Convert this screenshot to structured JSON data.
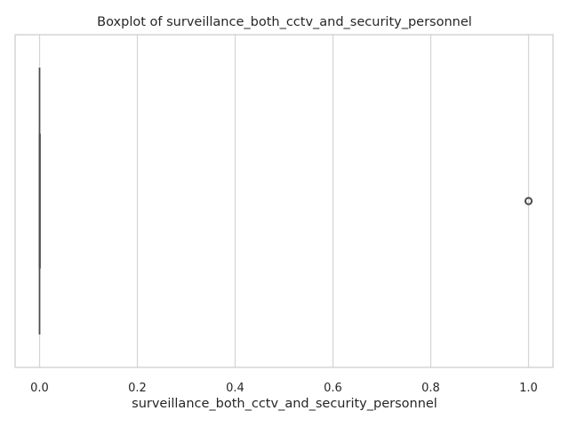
{
  "chart_data": {
    "type": "boxplot",
    "orientation": "horizontal",
    "title": "Boxplot of surveillance_both_cctv_and_security_personnel",
    "xlabel": "surveillance_both_cctv_and_security_personnel",
    "ylabel": "",
    "xlim": [
      -0.05,
      1.05
    ],
    "xticks": [
      0.0,
      0.2,
      0.4,
      0.6,
      0.8,
      1.0
    ],
    "xtick_labels": [
      "0.0",
      "0.2",
      "0.4",
      "0.6",
      "0.8",
      "1.0"
    ],
    "grid": true,
    "box": {
      "min": 0.0,
      "q1": 0.0,
      "median": 0.0,
      "q3": 0.0,
      "max": 0.0,
      "box_color": "#4c72b0",
      "line_color": "#4d4d4d"
    },
    "outliers": [
      1.0
    ],
    "colors": {
      "grid": "#d5d5d5",
      "spine": "#cccccc",
      "text": "#262626"
    }
  }
}
